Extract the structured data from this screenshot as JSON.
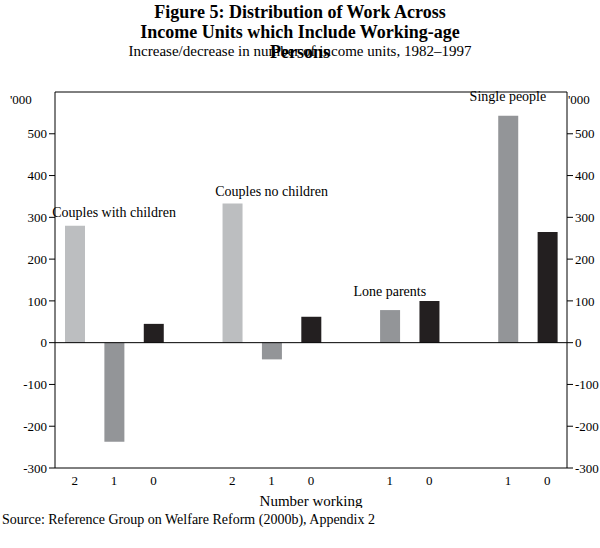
{
  "chart_data": {
    "type": "bar",
    "title": "Figure 5: Distribution of Work Across Income Units which Include Working-age Persons",
    "subtitle": "Increase/decrease in number of income units, 1982–1997",
    "x_label": "Number working",
    "y_label": "'000",
    "source": "Source: Reference Group on Welfare Reform (2000b), Appendix 2",
    "categories": [
      "2",
      "1",
      "0",
      null,
      "2",
      "1",
      "0",
      null,
      "1",
      "0",
      null,
      "1",
      "0"
    ],
    "values": [
      280,
      -237,
      45,
      null,
      333,
      -40,
      62,
      null,
      78,
      100,
      null,
      543,
      265
    ],
    "colors": [
      "#bcbec0",
      "#939598",
      "#231f20",
      null,
      "#bcbec0",
      "#939598",
      "#231f20",
      null,
      "#939598",
      "#231f20",
      null,
      "#939598",
      "#231f20"
    ],
    "ylim": [
      -300,
      600
    ],
    "yticks": [
      -300,
      -200,
      -100,
      0,
      100,
      200,
      300,
      400,
      500
    ],
    "grid": false,
    "annotations": [
      {
        "text": "Couples with children",
        "x": 1,
        "y": 313
      },
      {
        "text": "Couples no children",
        "x": 5,
        "y": 363
      },
      {
        "text": "Lone parents",
        "x": 8,
        "y": 123
      },
      {
        "text": "Single people",
        "x": 11,
        "y": 591
      }
    ]
  }
}
